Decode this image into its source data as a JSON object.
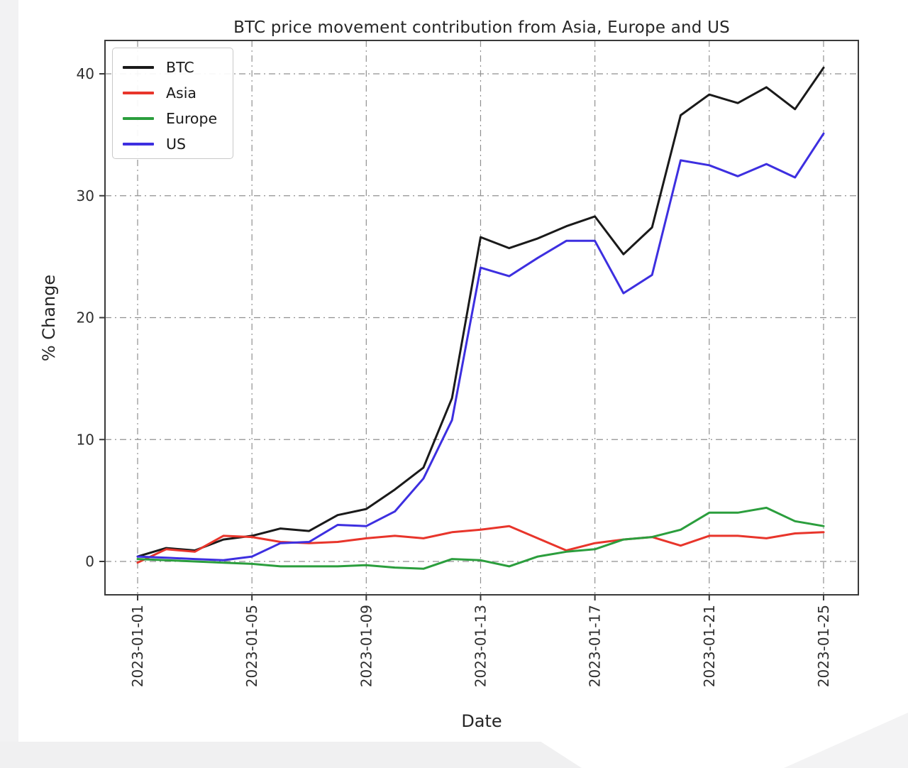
{
  "page": {
    "background_color": "#ffffff",
    "margin_gray": "#f0f0f1"
  },
  "chart_data": {
    "type": "line",
    "title": "BTC price movement contribution from Asia, Europe and US",
    "xlabel": "Date",
    "ylabel": "% Change",
    "grid": true,
    "grid_style": "dash-dot",
    "legend_position": "upper-left",
    "x": [
      "2023-01-01",
      "2023-01-02",
      "2023-01-03",
      "2023-01-04",
      "2023-01-05",
      "2023-01-06",
      "2023-01-07",
      "2023-01-08",
      "2023-01-09",
      "2023-01-10",
      "2023-01-11",
      "2023-01-12",
      "2023-01-13",
      "2023-01-14",
      "2023-01-15",
      "2023-01-16",
      "2023-01-17",
      "2023-01-18",
      "2023-01-19",
      "2023-01-20",
      "2023-01-21",
      "2023-01-22",
      "2023-01-23",
      "2023-01-24",
      "2023-01-25"
    ],
    "x_tick_indices": [
      0,
      4,
      8,
      12,
      16,
      20,
      24
    ],
    "x_tick_labels": [
      "2023-01-01",
      "2023-01-05",
      "2023-01-09",
      "2023-01-13",
      "2023-01-17",
      "2023-01-21",
      "2023-01-25"
    ],
    "y_ticks": [
      0,
      10,
      20,
      30,
      40
    ],
    "ylim": [
      -2.7,
      42.7
    ],
    "series": [
      {
        "name": "BTC",
        "color": "#1a1a1a",
        "values": [
          0.4,
          1.1,
          0.9,
          1.8,
          2.1,
          2.7,
          2.5,
          3.8,
          4.3,
          5.9,
          7.7,
          13.4,
          26.6,
          25.7,
          26.5,
          27.5,
          28.3,
          25.2,
          27.4,
          36.6,
          38.3,
          37.6,
          38.9,
          37.1,
          40.5
        ]
      },
      {
        "name": "Asia",
        "color": "#e8352b",
        "values": [
          -0.1,
          1.0,
          0.8,
          2.1,
          2.0,
          1.6,
          1.5,
          1.6,
          1.9,
          2.1,
          1.9,
          2.4,
          2.6,
          2.9,
          1.9,
          0.9,
          1.5,
          1.8,
          2.0,
          1.3,
          2.1,
          2.1,
          1.9,
          2.3,
          2.4
        ]
      },
      {
        "name": "Europe",
        "color": "#2b9e3d",
        "values": [
          0.2,
          0.1,
          0.0,
          -0.1,
          -0.2,
          -0.4,
          -0.4,
          -0.4,
          -0.3,
          -0.5,
          -0.6,
          0.2,
          0.1,
          -0.4,
          0.4,
          0.8,
          1.0,
          1.8,
          2.0,
          2.6,
          4.0,
          4.0,
          4.4,
          3.3,
          2.9
        ]
      },
      {
        "name": "US",
        "color": "#3d2fe0",
        "values": [
          0.4,
          0.3,
          0.2,
          0.1,
          0.4,
          1.5,
          1.6,
          3.0,
          2.9,
          4.1,
          6.8,
          11.6,
          24.1,
          23.4,
          24.9,
          26.3,
          26.3,
          22.0,
          23.5,
          32.9,
          32.5,
          31.6,
          32.6,
          31.5,
          35.1
        ]
      }
    ]
  }
}
